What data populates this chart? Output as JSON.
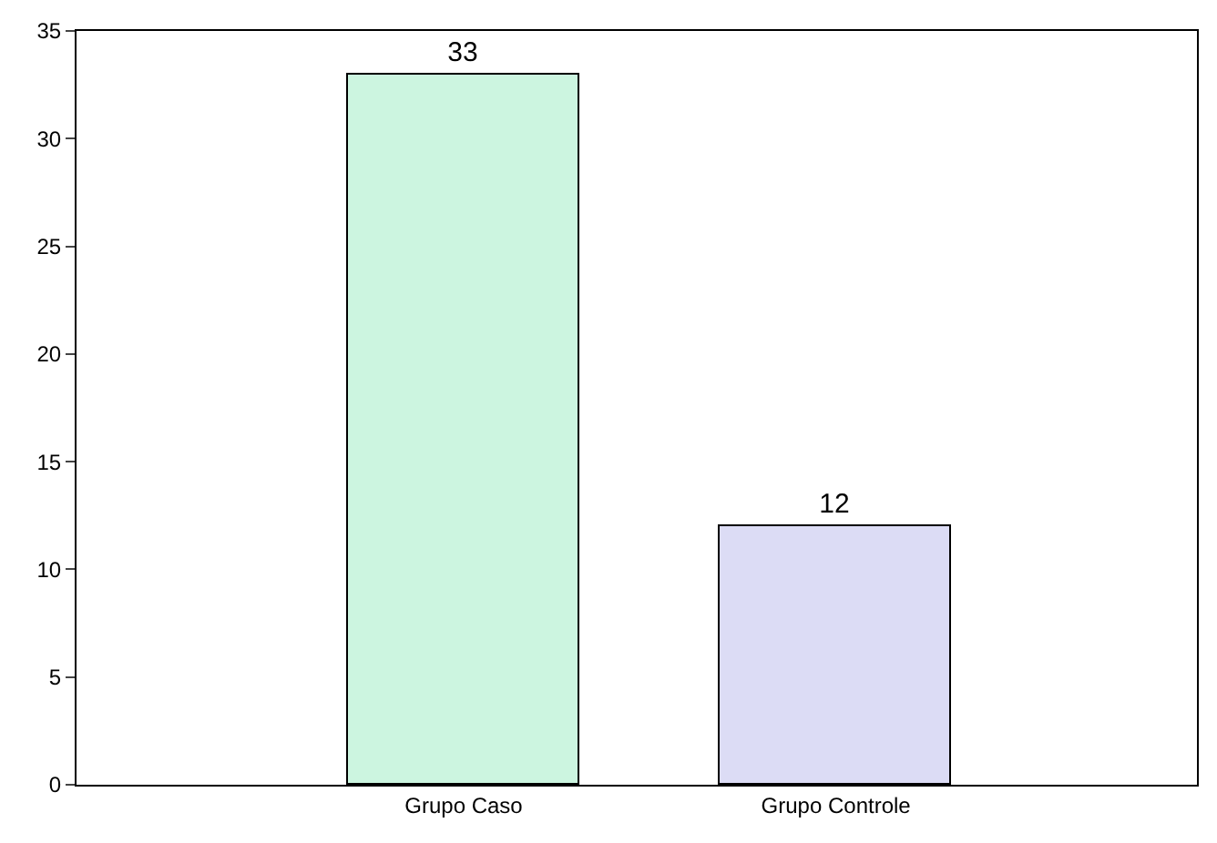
{
  "chart_data": {
    "type": "bar",
    "categories": [
      "Grupo Caso",
      "Grupo Controle"
    ],
    "values": [
      33,
      12
    ],
    "colors": [
      "#ccf5e0",
      "#dcdcf5"
    ],
    "data_labels": true,
    "ylim": [
      0,
      35
    ],
    "yticks": [
      0,
      5,
      10,
      15,
      20,
      25,
      30,
      35
    ],
    "legend": false
  }
}
